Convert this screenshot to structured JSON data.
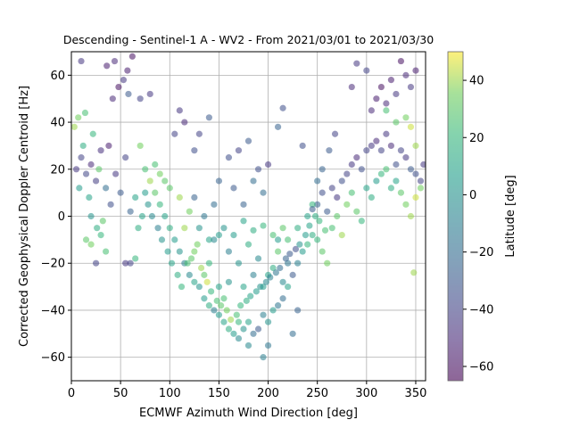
{
  "chart_data": {
    "type": "scatter",
    "title": "Descending - Sentinel-1 A - WV2 - From 2021/03/01 to 2021/03/30",
    "xlabel": "ECMWF Azimuth Wind Direction [deg]",
    "ylabel": "Corrected Geophysical Doppler Centroid [Hz]",
    "xlim": [
      0,
      360
    ],
    "ylim": [
      -70,
      70
    ],
    "xticks": [
      0,
      50,
      100,
      150,
      200,
      250,
      300,
      350
    ],
    "yticks": [
      -60,
      -40,
      -20,
      0,
      20,
      40,
      60
    ],
    "grid": true,
    "colorbar": {
      "label": "Latitude [deg]",
      "range": [
        -65,
        50
      ],
      "ticks": [
        -60,
        -40,
        -20,
        0,
        20,
        40
      ],
      "colormap": "viridis"
    },
    "series": [
      {
        "color_by": "latitude",
        "alpha": 0.55,
        "points": [
          [
            5,
            20,
            -45
          ],
          [
            10,
            25,
            -40
          ],
          [
            15,
            18,
            -38
          ],
          [
            20,
            22,
            -50
          ],
          [
            25,
            15,
            -42
          ],
          [
            30,
            28,
            -48
          ],
          [
            8,
            12,
            5
          ],
          [
            12,
            30,
            15
          ],
          [
            18,
            8,
            10
          ],
          [
            22,
            35,
            20
          ],
          [
            28,
            20,
            30
          ],
          [
            35,
            12,
            -20
          ],
          [
            40,
            5,
            -35
          ],
          [
            45,
            18,
            -45
          ],
          [
            50,
            10,
            -30
          ],
          [
            55,
            25,
            -40
          ],
          [
            60,
            2,
            -25
          ],
          [
            65,
            8,
            10
          ],
          [
            3,
            38,
            40
          ],
          [
            7,
            42,
            35
          ],
          [
            14,
            44,
            25
          ],
          [
            20,
            0,
            0
          ],
          [
            26,
            -5,
            15
          ],
          [
            32,
            -2,
            30
          ],
          [
            38,
            30,
            -55
          ],
          [
            42,
            50,
            -50
          ],
          [
            48,
            55,
            -60
          ],
          [
            53,
            58,
            -45
          ],
          [
            57,
            62,
            -55
          ],
          [
            62,
            68,
            -60
          ],
          [
            44,
            66,
            -50
          ],
          [
            36,
            64,
            -55
          ],
          [
            10,
            66,
            -45
          ],
          [
            58,
            52,
            -30
          ],
          [
            70,
            50,
            -40
          ],
          [
            80,
            52,
            -45
          ],
          [
            70,
            30,
            35
          ],
          [
            75,
            20,
            25
          ],
          [
            80,
            15,
            40
          ],
          [
            85,
            10,
            30
          ],
          [
            90,
            5,
            20
          ],
          [
            95,
            0,
            10
          ],
          [
            100,
            -5,
            15
          ],
          [
            105,
            -10,
            5
          ],
          [
            110,
            -15,
            0
          ],
          [
            115,
            -20,
            -10
          ],
          [
            120,
            -25,
            -5
          ],
          [
            125,
            -28,
            10
          ],
          [
            130,
            -30,
            0
          ],
          [
            135,
            -35,
            5
          ],
          [
            140,
            -38,
            15
          ],
          [
            145,
            -40,
            -10
          ],
          [
            150,
            -42,
            5
          ],
          [
            155,
            -45,
            10
          ],
          [
            160,
            -48,
            15
          ],
          [
            165,
            -50,
            5
          ],
          [
            170,
            -52,
            -5
          ],
          [
            175,
            -48,
            0
          ],
          [
            180,
            -45,
            10
          ],
          [
            185,
            -50,
            -20
          ],
          [
            190,
            -48,
            -30
          ],
          [
            195,
            -42,
            -10
          ],
          [
            200,
            -45,
            0
          ],
          [
            205,
            -40,
            5
          ],
          [
            210,
            -38,
            -15
          ],
          [
            215,
            -35,
            -20
          ],
          [
            220,
            -30,
            10
          ],
          [
            225,
            -25,
            -30
          ],
          [
            230,
            -20,
            -10
          ],
          [
            235,
            -15,
            5
          ],
          [
            240,
            -12,
            20
          ],
          [
            245,
            -8,
            15
          ],
          [
            130,
            -5,
            0
          ],
          [
            140,
            -10,
            10
          ],
          [
            150,
            -8,
            5
          ],
          [
            160,
            -15,
            -10
          ],
          [
            170,
            -20,
            0
          ],
          [
            180,
            -12,
            15
          ],
          [
            190,
            -18,
            -5
          ],
          [
            200,
            -25,
            10
          ],
          [
            210,
            -10,
            5
          ],
          [
            220,
            -20,
            -15
          ],
          [
            140,
            -20,
            20
          ],
          [
            160,
            -28,
            0
          ],
          [
            175,
            -30,
            10
          ],
          [
            185,
            -25,
            -10
          ],
          [
            195,
            -30,
            5
          ],
          [
            205,
            -22,
            15
          ],
          [
            215,
            -28,
            -5
          ],
          [
            150,
            -30,
            10
          ],
          [
            120,
            2,
            35
          ],
          [
            110,
            8,
            40
          ],
          [
            100,
            12,
            30
          ],
          [
            90,
            18,
            35
          ],
          [
            85,
            22,
            25
          ],
          [
            95,
            15,
            30
          ],
          [
            105,
            35,
            -40
          ],
          [
            110,
            45,
            -45
          ],
          [
            115,
            40,
            -50
          ],
          [
            125,
            28,
            -35
          ],
          [
            130,
            35,
            -40
          ],
          [
            140,
            42,
            -30
          ],
          [
            150,
            15,
            -25
          ],
          [
            160,
            25,
            -35
          ],
          [
            170,
            28,
            -40
          ],
          [
            180,
            32,
            -30
          ],
          [
            190,
            20,
            -35
          ],
          [
            200,
            22,
            -45
          ],
          [
            210,
            38,
            -25
          ],
          [
            215,
            46,
            -35
          ],
          [
            195,
            10,
            -20
          ],
          [
            175,
            5,
            -25
          ],
          [
            165,
            12,
            -30
          ],
          [
            185,
            15,
            -20
          ],
          [
            250,
            5,
            -25
          ],
          [
            255,
            10,
            -35
          ],
          [
            260,
            2,
            -30
          ],
          [
            265,
            12,
            -40
          ],
          [
            270,
            8,
            -45
          ],
          [
            275,
            15,
            -35
          ],
          [
            280,
            18,
            -40
          ],
          [
            285,
            22,
            -45
          ],
          [
            290,
            25,
            -50
          ],
          [
            295,
            20,
            -35
          ],
          [
            300,
            28,
            -40
          ],
          [
            305,
            30,
            -45
          ],
          [
            310,
            32,
            -50
          ],
          [
            315,
            28,
            -40
          ],
          [
            320,
            35,
            -45
          ],
          [
            325,
            30,
            -50
          ],
          [
            330,
            22,
            -35
          ],
          [
            335,
            28,
            -40
          ],
          [
            340,
            25,
            -45
          ],
          [
            345,
            20,
            -30
          ],
          [
            350,
            18,
            -35
          ],
          [
            355,
            15,
            -40
          ],
          [
            358,
            22,
            -45
          ],
          [
            305,
            45,
            -50
          ],
          [
            310,
            50,
            -55
          ],
          [
            315,
            55,
            -60
          ],
          [
            320,
            48,
            -50
          ],
          [
            325,
            58,
            -55
          ],
          [
            330,
            52,
            -45
          ],
          [
            335,
            66,
            -60
          ],
          [
            340,
            60,
            -50
          ],
          [
            345,
            55,
            -45
          ],
          [
            350,
            62,
            -55
          ],
          [
            300,
            62,
            -40
          ],
          [
            290,
            65,
            -45
          ],
          [
            285,
            55,
            -50
          ],
          [
            250,
            -10,
            20
          ],
          [
            255,
            -15,
            30
          ],
          [
            260,
            -20,
            35
          ],
          [
            265,
            -5,
            25
          ],
          [
            270,
            0,
            30
          ],
          [
            275,
            -8,
            40
          ],
          [
            280,
            5,
            35
          ],
          [
            285,
            10,
            25
          ],
          [
            290,
            2,
            30
          ],
          [
            295,
            -2,
            20
          ],
          [
            300,
            12,
            10
          ],
          [
            305,
            8,
            15
          ],
          [
            310,
            15,
            5
          ],
          [
            315,
            18,
            20
          ],
          [
            320,
            20,
            25
          ],
          [
            325,
            12,
            15
          ],
          [
            330,
            15,
            10
          ],
          [
            335,
            10,
            30
          ],
          [
            340,
            5,
            35
          ],
          [
            345,
            0,
            40
          ],
          [
            350,
            8,
            45
          ],
          [
            355,
            12,
            35
          ],
          [
            350,
            30,
            40
          ],
          [
            345,
            38,
            45
          ],
          [
            340,
            42,
            35
          ],
          [
            330,
            40,
            30
          ],
          [
            320,
            45,
            25
          ],
          [
            348,
            -24,
            40
          ],
          [
            230,
            -40,
            -25
          ],
          [
            225,
            -50,
            -20
          ],
          [
            200,
            -55,
            -15
          ],
          [
            195,
            -60,
            -10
          ],
          [
            180,
            -55,
            -5
          ],
          [
            170,
            -45,
            20
          ],
          [
            155,
            -35,
            25
          ],
          [
            135,
            -25,
            30
          ],
          [
            125,
            -15,
            35
          ],
          [
            115,
            -5,
            40
          ],
          [
            210,
            -15,
            30
          ],
          [
            220,
            -10,
            25
          ],
          [
            230,
            -5,
            15
          ],
          [
            240,
            0,
            10
          ],
          [
            245,
            5,
            20
          ],
          [
            250,
            15,
            -20
          ],
          [
            255,
            20,
            -25
          ],
          [
            262,
            28,
            -30
          ],
          [
            268,
            35,
            -40
          ],
          [
            235,
            30,
            -35
          ],
          [
            15,
            -10,
            30
          ],
          [
            20,
            -12,
            35
          ],
          [
            25,
            -20,
            -40
          ],
          [
            30,
            -8,
            20
          ],
          [
            35,
            -15,
            25
          ],
          [
            60,
            -20,
            -40
          ],
          [
            55,
            -20,
            -45
          ],
          [
            65,
            -18,
            20
          ],
          [
            68,
            -5,
            15
          ],
          [
            72,
            0,
            10
          ],
          [
            75,
            10,
            5
          ],
          [
            78,
            5,
            0
          ],
          [
            82,
            0,
            -5
          ],
          [
            88,
            -5,
            -10
          ],
          [
            92,
            -10,
            0
          ],
          [
            98,
            -15,
            5
          ],
          [
            102,
            -20,
            10
          ],
          [
            108,
            -25,
            15
          ],
          [
            112,
            -30,
            20
          ],
          [
            118,
            -20,
            25
          ],
          [
            122,
            -18,
            30
          ],
          [
            128,
            -12,
            35
          ],
          [
            132,
            -22,
            40
          ],
          [
            138,
            -28,
            45
          ],
          [
            142,
            -32,
            20
          ],
          [
            148,
            -36,
            25
          ],
          [
            152,
            -38,
            30
          ],
          [
            158,
            -40,
            35
          ],
          [
            162,
            -44,
            40
          ],
          [
            168,
            -42,
            25
          ],
          [
            172,
            -38,
            20
          ],
          [
            178,
            -36,
            15
          ],
          [
            182,
            -34,
            10
          ],
          [
            188,
            -32,
            5
          ],
          [
            192,
            -30,
            0
          ],
          [
            198,
            -28,
            -5
          ],
          [
            202,
            -26,
            -10
          ],
          [
            208,
            -24,
            -15
          ],
          [
            212,
            -22,
            -20
          ],
          [
            218,
            -18,
            -25
          ],
          [
            222,
            -16,
            -30
          ],
          [
            228,
            -14,
            -35
          ],
          [
            232,
            -12,
            0
          ],
          [
            238,
            -8,
            5
          ],
          [
            242,
            -4,
            10
          ],
          [
            248,
            0,
            15
          ],
          [
            252,
            -2,
            20
          ],
          [
            258,
            -6,
            25
          ],
          [
            145,
            -10,
            -5
          ],
          [
            155,
            -5,
            0
          ],
          [
            165,
            -8,
            5
          ],
          [
            175,
            -2,
            10
          ],
          [
            185,
            -6,
            15
          ],
          [
            195,
            -4,
            20
          ],
          [
            205,
            -8,
            25
          ],
          [
            215,
            -5,
            30
          ],
          [
            135,
            0,
            -15
          ],
          [
            145,
            5,
            -20
          ],
          [
            125,
            8,
            -25
          ],
          [
            245,
            3,
            -30
          ]
        ]
      }
    ]
  }
}
